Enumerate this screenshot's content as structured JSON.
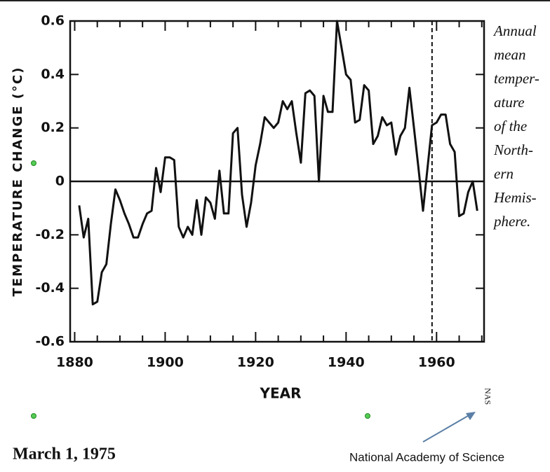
{
  "chart_data": {
    "type": "line",
    "y_label": "TEMPERATURE CHANGE (°C)",
    "x_label": "YEAR",
    "caption_lines": [
      "Annual",
      "mean",
      "temper-",
      "ature",
      "of the",
      "North-",
      "ern",
      "Hemis-",
      "phere."
    ],
    "date": "March 1, 1975",
    "source": "National Academy of Science",
    "source_mark": "NAS",
    "xlim": [
      1879,
      1970.5
    ],
    "ylim": [
      -0.6,
      0.6
    ],
    "xticks": [
      1880,
      1900,
      1920,
      1940,
      1960
    ],
    "xminorticks": [
      1885,
      1890,
      1895,
      1905,
      1910,
      1915,
      1925,
      1930,
      1935,
      1945,
      1950,
      1955,
      1965,
      1970
    ],
    "yticks": [
      0.6,
      0.4,
      0.2,
      0,
      -0.2,
      -0.4,
      -0.6
    ],
    "hline": 0,
    "vline": 1959,
    "x": [
      1881,
      1882,
      1883,
      1884,
      1885,
      1886,
      1887,
      1888,
      1889,
      1890,
      1891,
      1892,
      1893,
      1894,
      1895,
      1896,
      1897,
      1898,
      1899,
      1900,
      1901,
      1902,
      1903,
      1904,
      1905,
      1906,
      1907,
      1908,
      1909,
      1910,
      1911,
      1912,
      1913,
      1914,
      1915,
      1916,
      1917,
      1918,
      1919,
      1920,
      1921,
      1922,
      1923,
      1924,
      1925,
      1926,
      1927,
      1928,
      1929,
      1930,
      1931,
      1932,
      1933,
      1934,
      1935,
      1936,
      1937,
      1938,
      1939,
      1940,
      1941,
      1942,
      1943,
      1944,
      1945,
      1946,
      1947,
      1948,
      1949,
      1950,
      1951,
      1952,
      1953,
      1954,
      1955,
      1956,
      1957,
      1958,
      1959,
      1960,
      1961,
      1962,
      1963,
      1964,
      1965,
      1966,
      1967,
      1968,
      1969
    ],
    "series": [
      {
        "color": "#111111",
        "values": [
          -0.09,
          -0.21,
          -0.14,
          -0.46,
          -0.45,
          -0.34,
          -0.31,
          -0.16,
          -0.03,
          -0.07,
          -0.12,
          -0.16,
          -0.21,
          -0.21,
          -0.16,
          -0.12,
          -0.11,
          0.05,
          -0.04,
          0.09,
          0.09,
          0.08,
          -0.17,
          -0.21,
          -0.17,
          -0.2,
          -0.07,
          -0.2,
          -0.06,
          -0.08,
          -0.14,
          0.04,
          -0.12,
          -0.12,
          0.18,
          0.2,
          -0.05,
          -0.17,
          -0.08,
          0.06,
          0.14,
          0.24,
          0.22,
          0.2,
          0.22,
          0.3,
          0.27,
          0.3,
          0.18,
          0.07,
          0.33,
          0.34,
          0.32,
          0.0,
          0.32,
          0.26,
          0.26,
          0.6,
          0.5,
          0.4,
          0.38,
          0.22,
          0.23,
          0.36,
          0.34,
          0.14,
          0.17,
          0.24,
          0.21,
          0.22,
          0.1,
          0.17,
          0.2,
          0.35,
          0.2,
          0.05,
          -0.11,
          0.05,
          0.21,
          0.22,
          0.25,
          0.25,
          0.14,
          0.11,
          -0.13,
          -0.12,
          -0.04,
          0.0,
          -0.11
        ]
      }
    ]
  }
}
